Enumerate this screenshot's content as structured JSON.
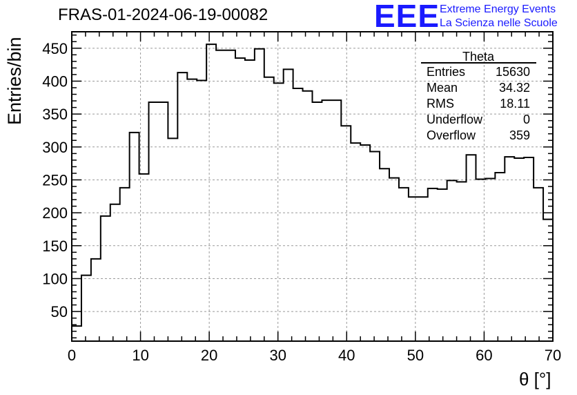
{
  "header": {
    "title": "FRAS-01-2024-06-19-00082",
    "logo": "EEE",
    "logo_line1": "Extreme Energy Events",
    "logo_line2": "La Scienza nelle Scuole"
  },
  "stats": {
    "name": "Theta",
    "rows": [
      {
        "label": "Entries",
        "value": "15630"
      },
      {
        "label": "Mean",
        "value": "34.32"
      },
      {
        "label": "RMS",
        "value": "18.11"
      },
      {
        "label": "Underflow",
        "value": "0"
      },
      {
        "label": "Overflow",
        "value": "359"
      }
    ]
  },
  "colors": {
    "line": "#000000",
    "grid": "#888888",
    "logo": "#1a1aff"
  },
  "chart_data": {
    "type": "histogram",
    "xlabel": "θ [°]",
    "ylabel": "Entries/bin",
    "xlim": [
      0,
      70
    ],
    "ylim": [
      5,
      475
    ],
    "x_ticks": [
      0,
      10,
      20,
      30,
      40,
      50,
      60,
      70
    ],
    "y_ticks": [
      50,
      100,
      150,
      200,
      250,
      300,
      350,
      400,
      450
    ],
    "grid": true,
    "bin_width": 1.4,
    "values": [
      28,
      105,
      130,
      195,
      213,
      238,
      322,
      259,
      368,
      368,
      313,
      413,
      403,
      401,
      456,
      447,
      447,
      435,
      432,
      449,
      406,
      397,
      418,
      389,
      385,
      368,
      371,
      371,
      332,
      306,
      303,
      293,
      267,
      253,
      238,
      224,
      224,
      237,
      236,
      249,
      247,
      288,
      251,
      252,
      261,
      285,
      283,
      284,
      238,
      190
    ]
  }
}
